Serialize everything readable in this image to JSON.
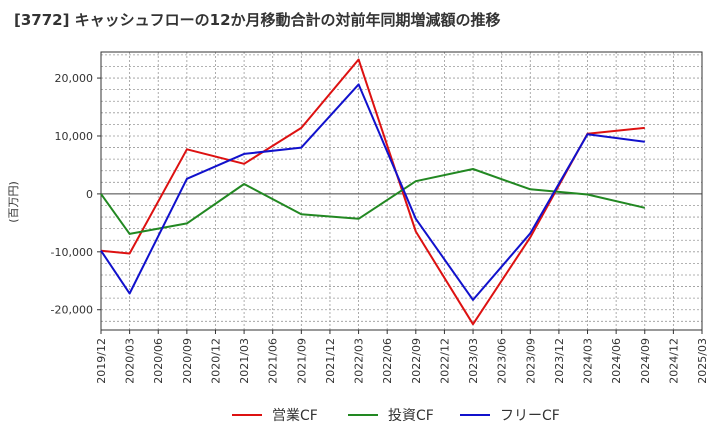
{
  "chart_data": {
    "type": "line",
    "title": "[3772]  キャッシュフローの12か月移動合計の対前年同期増減額の推移",
    "ylabel": "(百万円)",
    "xlabel": "",
    "x_ticks": [
      "2019/12",
      "2020/03",
      "2020/06",
      "2020/09",
      "2020/12",
      "2021/03",
      "2021/06",
      "2021/09",
      "2021/12",
      "2022/03",
      "2022/06",
      "2022/09",
      "2022/12",
      "2023/03",
      "2023/06",
      "2023/09",
      "2023/12",
      "2024/03",
      "2024/06",
      "2024/09",
      "2024/12",
      "2025/03"
    ],
    "y_ticks": [
      20000,
      10000,
      0,
      -10000,
      -20000
    ],
    "y_tick_labels": [
      "20,000",
      "10,000",
      "0",
      "-10,000",
      "-20,000"
    ],
    "ylim": [
      -23500,
      24500
    ],
    "grid": true,
    "legend_position": "bottom",
    "series": [
      {
        "name": "営業CF",
        "color": "#dd1111",
        "points": [
          [
            "2019/12",
            -9800
          ],
          [
            "2020/03",
            -10300
          ],
          [
            "2020/09",
            7700
          ],
          [
            "2021/03",
            5200
          ],
          [
            "2021/09",
            11400
          ],
          [
            "2022/03",
            23200
          ],
          [
            "2022/09",
            -6500
          ],
          [
            "2023/03",
            -22500
          ],
          [
            "2023/09",
            -7500
          ],
          [
            "2024/03",
            10400
          ],
          [
            "2024/09",
            11400
          ]
        ]
      },
      {
        "name": "投資CF",
        "color": "#228822",
        "points": [
          [
            "2019/12",
            0
          ],
          [
            "2020/03",
            -6900
          ],
          [
            "2020/09",
            -5100
          ],
          [
            "2021/03",
            1700
          ],
          [
            "2021/09",
            -3500
          ],
          [
            "2022/03",
            -4300
          ],
          [
            "2022/09",
            2200
          ],
          [
            "2023/03",
            4300
          ],
          [
            "2023/09",
            800
          ],
          [
            "2024/03",
            -100
          ],
          [
            "2024/09",
            -2400
          ]
        ]
      },
      {
        "name": "フリーCF",
        "color": "#1111cc",
        "points": [
          [
            "2019/12",
            -9800
          ],
          [
            "2020/03",
            -17200
          ],
          [
            "2020/09",
            2600
          ],
          [
            "2021/03",
            6900
          ],
          [
            "2021/09",
            8000
          ],
          [
            "2022/03",
            18900
          ],
          [
            "2022/09",
            -4300
          ],
          [
            "2023/03",
            -18300
          ],
          [
            "2023/09",
            -6800
          ],
          [
            "2024/03",
            10300
          ],
          [
            "2024/09",
            9000
          ]
        ]
      }
    ]
  }
}
